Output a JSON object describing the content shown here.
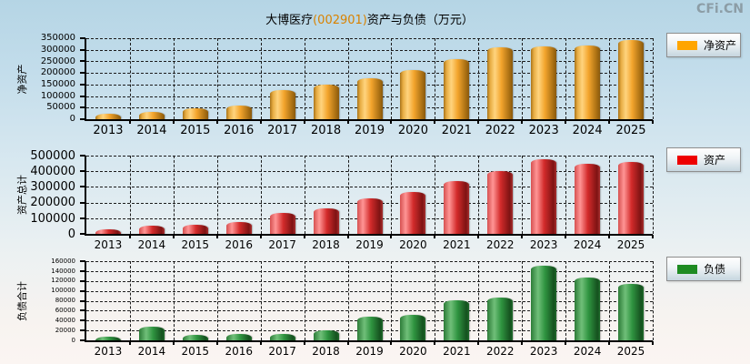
{
  "page": {
    "watermark": "CFi.CN"
  },
  "title": {
    "prefix": "大博医疗",
    "code": "(002901)",
    "suffix": "资产与负债（万元）",
    "code_color": "#d98200"
  },
  "colors": {
    "net_assets_bar": "#FFA500",
    "assets_bar": "#EE0000",
    "liabilities_bar": "#1E8B22",
    "grid": "#1b1b1b",
    "watermark": "#8c9da6"
  },
  "chart_data": [
    {
      "type": "bar",
      "name": "net-assets",
      "ylabel": "净资产",
      "legend": "净资产",
      "legend_position": "right",
      "color": "#FFA500",
      "grid": true,
      "categories": [
        "2013",
        "2014",
        "2015",
        "2016",
        "2017",
        "2018",
        "2019",
        "2020",
        "2021",
        "2022",
        "2023",
        "2024",
        "2025"
      ],
      "values": [
        22000,
        30000,
        46000,
        58000,
        127000,
        148000,
        177000,
        212000,
        258000,
        312000,
        315000,
        319000,
        344000
      ],
      "ylim": [
        0,
        350000
      ],
      "ytick_step": 50000
    },
    {
      "type": "bar",
      "name": "total-assets",
      "ylabel": "资产总计",
      "legend": "资产",
      "legend_position": "right",
      "color": "#EE0000",
      "grid": true,
      "categories": [
        "2013",
        "2014",
        "2015",
        "2016",
        "2017",
        "2018",
        "2019",
        "2020",
        "2021",
        "2022",
        "2023",
        "2024",
        "2025"
      ],
      "values": [
        27000,
        55000,
        57000,
        73000,
        136000,
        165000,
        224000,
        265000,
        339000,
        399000,
        475000,
        450000,
        462000
      ],
      "ylim": [
        0,
        500000
      ],
      "ytick_step": 100000
    },
    {
      "type": "bar",
      "name": "total-liabilities",
      "ylabel": "负债合计",
      "legend": "负债",
      "legend_position": "right",
      "color": "#1E8B22",
      "grid": true,
      "categories": [
        "2013",
        "2014",
        "2015",
        "2016",
        "2017",
        "2018",
        "2019",
        "2020",
        "2021",
        "2022",
        "2023",
        "2024",
        "2025"
      ],
      "values": [
        8000,
        27000,
        11500,
        13000,
        13000,
        19500,
        48000,
        51000,
        81000,
        86000,
        150000,
        126000,
        114000
      ],
      "ylim": [
        0,
        160000
      ],
      "ytick_step": 20000
    }
  ]
}
